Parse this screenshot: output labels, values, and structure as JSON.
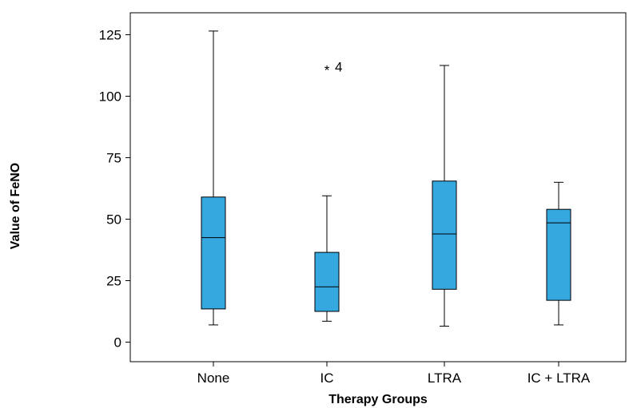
{
  "chart_data": {
    "type": "boxplot",
    "xlabel": "Therapy Groups",
    "ylabel": "Value of FeNO",
    "ylim": [
      -8,
      138
    ],
    "yticks": [
      0,
      25,
      50,
      75,
      100,
      125
    ],
    "grid": false,
    "box_color": "#35A8E0",
    "categories": [
      "None",
      "IC",
      "LTRA",
      "IC + LTRA"
    ],
    "boxes": [
      {
        "category": "None",
        "min": 7,
        "q1": 13.5,
        "median": 42.5,
        "q3": 59,
        "max": 126.5
      },
      {
        "category": "IC",
        "min": 8.5,
        "q1": 12.5,
        "median": 22.5,
        "q3": 36.5,
        "max": 59.5
      },
      {
        "category": "LTRA",
        "min": 6.5,
        "q1": 21.5,
        "median": 44,
        "q3": 65.5,
        "max": 112.5
      },
      {
        "category": "IC + LTRA",
        "min": 7,
        "q1": 17,
        "median": 48.5,
        "q3": 54,
        "max": 65
      }
    ],
    "outliers": [
      {
        "category": "IC",
        "value": 112,
        "marker": "*",
        "label": "4"
      }
    ]
  }
}
